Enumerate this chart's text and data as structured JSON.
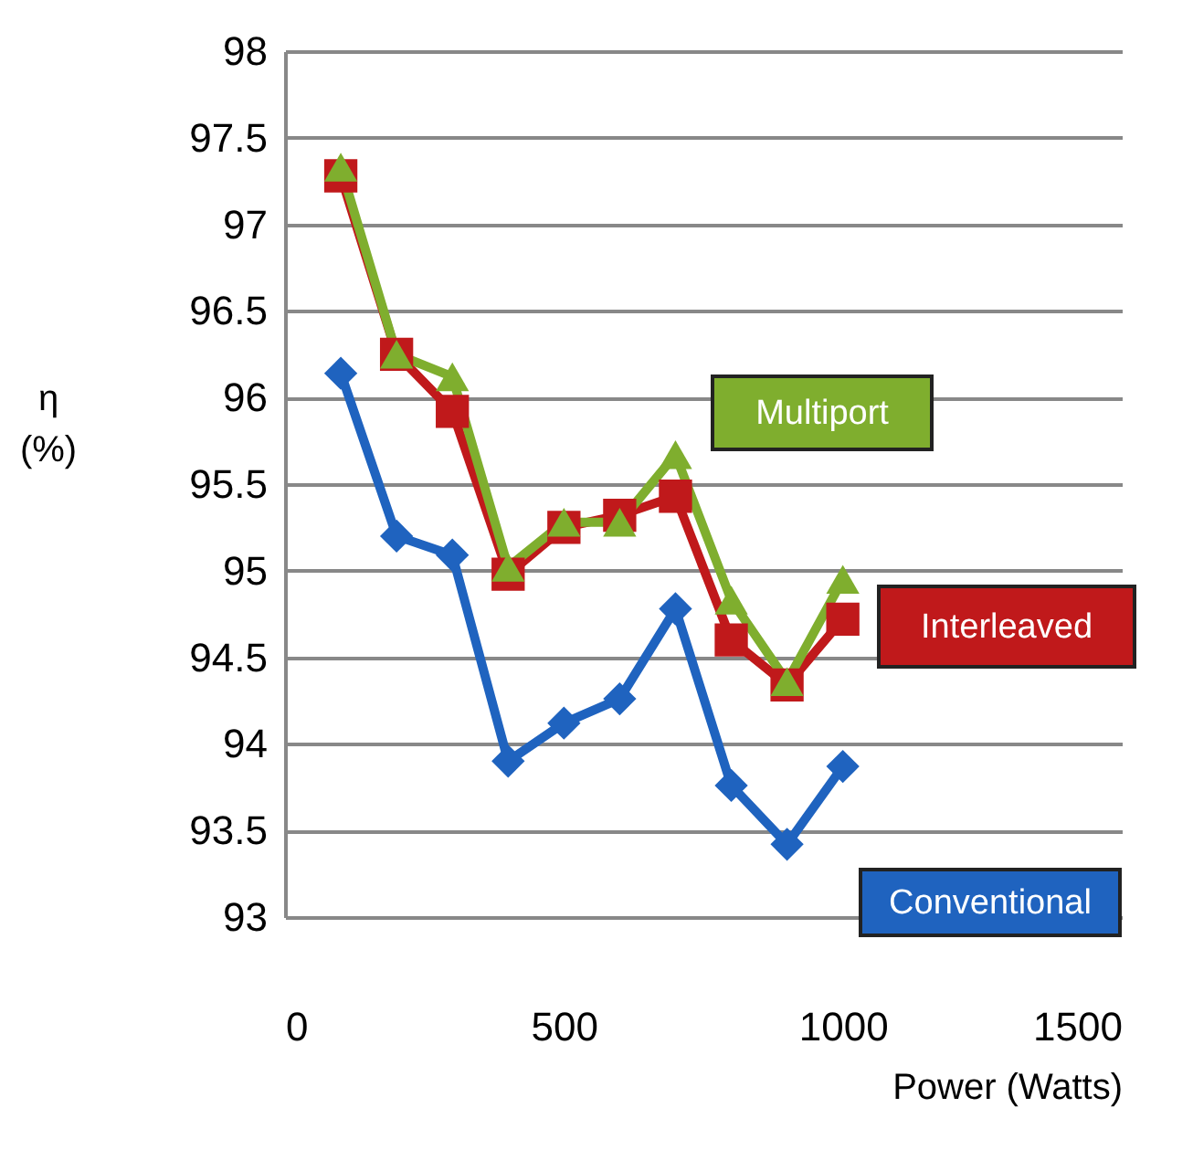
{
  "chart_data": {
    "type": "line",
    "xlabel": "Power (Watts)",
    "ylabel": "η (%)",
    "x": [
      100,
      200,
      300,
      400,
      500,
      600,
      700,
      800,
      900,
      1000
    ],
    "series": [
      {
        "name": "Conventional",
        "color": "#1f63bf",
        "marker": "diamond",
        "values": [
          96.14,
          95.2,
          95.09,
          93.9,
          94.12,
          94.26,
          94.78,
          93.76,
          93.42,
          93.87
        ]
      },
      {
        "name": "Interleaved",
        "color": "#c0191b",
        "marker": "square",
        "values": [
          97.28,
          96.25,
          95.92,
          94.98,
          95.25,
          95.32,
          95.43,
          94.6,
          94.34,
          94.72
        ]
      },
      {
        "name": "Multiport",
        "color": "#7fae2e",
        "marker": "triangle",
        "values": [
          97.33,
          96.25,
          96.12,
          95.02,
          95.28,
          95.28,
          95.67,
          94.83,
          94.36,
          94.95
        ]
      }
    ],
    "xlim": [
      0,
      1500
    ],
    "xticks": [
      0,
      500,
      1000,
      1500
    ],
    "ylim": [
      93,
      98
    ],
    "yticks": [
      93,
      93.5,
      94,
      94.5,
      95,
      95.5,
      96,
      96.5,
      97,
      97.5,
      98
    ],
    "grid": "y",
    "line_style": "solid"
  }
}
